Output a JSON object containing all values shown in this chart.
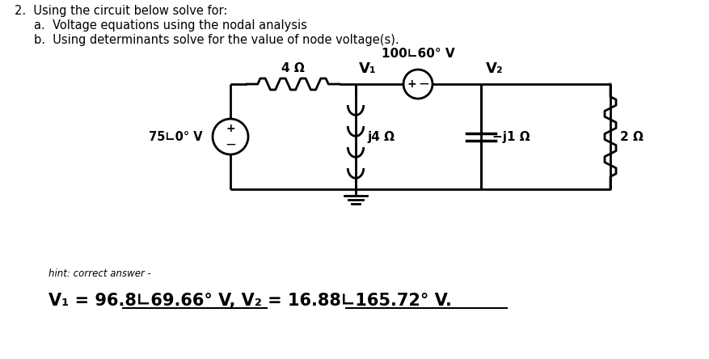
{
  "title_line1": "2.  Using the circuit below solve for:",
  "title_line2a": "a.  Voltage equations using the nodal analysis",
  "title_line2b": "b.  Using determinants solve for the value of node voltage(s).",
  "voltage_source_left_label": "75∟0° V",
  "voltage_source_top_label": "100∟60° V",
  "resistor_top_label": "4 Ω",
  "node1_label": "V₁",
  "node2_label": "V₂",
  "inductor_label": "j4 Ω",
  "capacitor_label": "−j1 Ω",
  "resistor_right_label": "2 Ω",
  "hint_label": "hint: correct answer -",
  "answer_label": "V₁ = 96.8∟69.66° V, V₂ = 16.88∟165.72° V.",
  "bg_color": "#ffffff",
  "text_color": "#000000",
  "circuit_color": "#000000",
  "figsize": [
    8.77,
    4.44
  ],
  "dpi": 100
}
